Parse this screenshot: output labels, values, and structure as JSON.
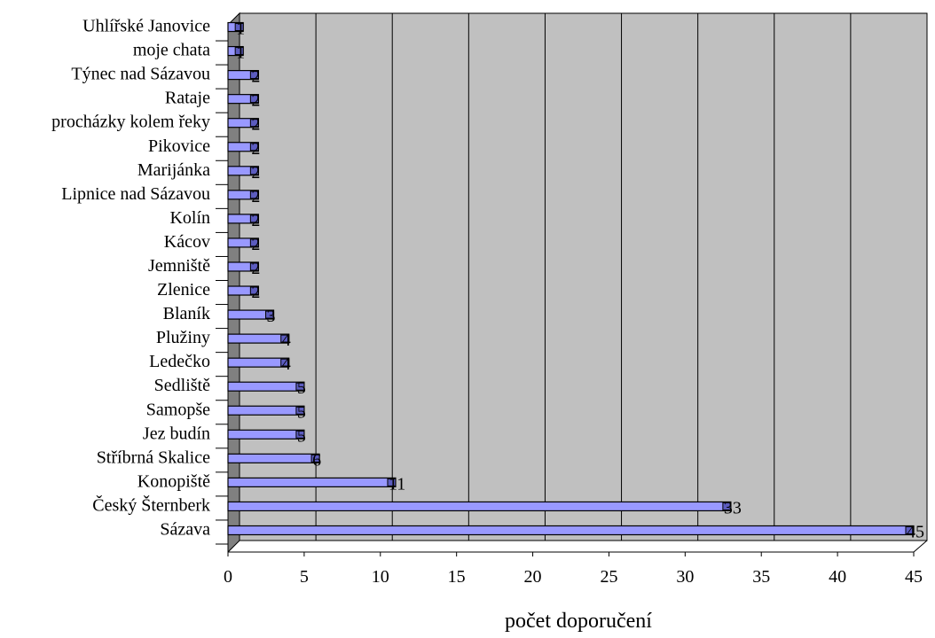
{
  "chart_data": {
    "type": "bar",
    "orientation": "horizontal",
    "categories": [
      "Uhlířské Janovice",
      "moje chata",
      "Týnec nad Sázavou",
      "Rataje",
      "procházky kolem řeky",
      "Pikovice",
      "Marijánka",
      "Lipnice nad Sázavou",
      "Kolín",
      "Kácov",
      "Jemniště",
      "Zlenice",
      "Blaník",
      "Plužiny",
      "Ledečko",
      "Sedliště",
      "Samopše",
      "Jez budín",
      "Stříbrná Skalice",
      "Konopiště",
      "Český Šternberk",
      "Sázava"
    ],
    "values": [
      1,
      1,
      2,
      2,
      2,
      2,
      2,
      2,
      2,
      2,
      2,
      2,
      3,
      4,
      4,
      5,
      5,
      5,
      6,
      11,
      33,
      45
    ],
    "data_labels": [
      "1",
      "1",
      "2",
      "2",
      "2",
      "2",
      "2",
      "2",
      "2",
      "2",
      "2",
      "2",
      "3",
      "4",
      "4",
      "5",
      "5",
      "5",
      "6",
      "11",
      "33",
      "45"
    ],
    "xlabel": "počet doporučení",
    "ylabel": "",
    "xlim": [
      0,
      45
    ],
    "xticks": [
      0,
      5,
      10,
      15,
      20,
      25,
      30,
      35,
      40,
      45
    ],
    "grid": true,
    "colors": {
      "bar_fill": "#9999ff",
      "bar_stroke": "#000000",
      "plot_background": "#c0c0c0",
      "wall_side": "#808080",
      "gridline": "#000000"
    }
  }
}
